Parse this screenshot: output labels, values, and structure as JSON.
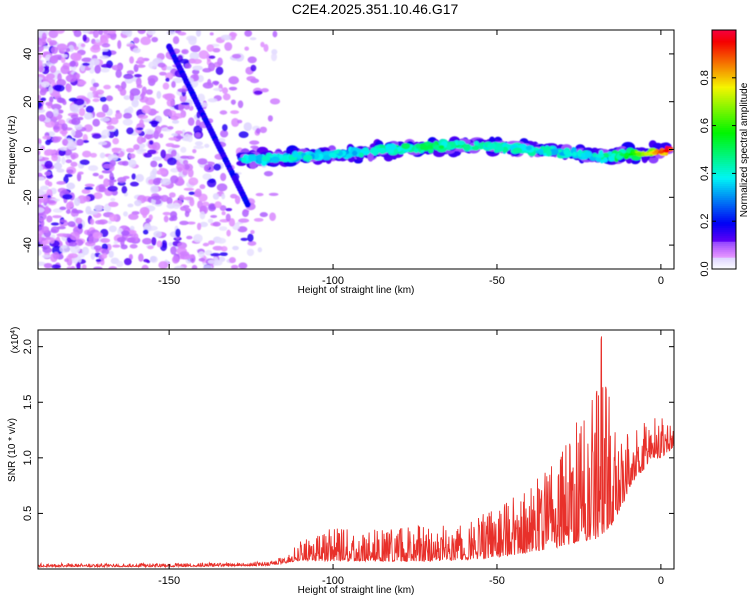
{
  "title": "C2E4.2025.351.10.46.G17",
  "chart_data": [
    {
      "type": "heatmap",
      "xlabel": "Height of straight line (km)",
      "ylabel": "Frequency (Hz)",
      "xlim": [
        -190,
        4
      ],
      "ylim": [
        -50,
        50
      ],
      "xticks": [
        -150,
        -100,
        -50,
        0
      ],
      "yticks": [
        -40,
        -20,
        0,
        20,
        40
      ],
      "colorbar": {
        "label": "Normalized spectral amplitude",
        "range": [
          0,
          1
        ],
        "ticks": [
          "0.0",
          "0.2",
          "0.4",
          "0.6",
          "0.8"
        ],
        "tick_values": [
          0,
          0.2,
          0.4,
          0.6,
          0.8
        ]
      },
      "features": {
        "diagonal_line": {
          "from": [
            -150,
            43
          ],
          "to": [
            -126,
            -23
          ],
          "amplitude": 0.15
        },
        "horizontal_band": {
          "x": [
            -128,
            -120,
            -110,
            -100,
            -90,
            -80,
            -70,
            -60,
            -50,
            -40,
            -30,
            -25,
            -20,
            -15,
            -10,
            -5,
            0,
            3
          ],
          "y": [
            -4,
            -4,
            -3,
            -2,
            -1,
            0,
            1,
            2,
            1,
            0,
            -1,
            -2,
            -3,
            -3,
            -2,
            -2,
            -1,
            0
          ],
          "amplitude": [
            0.38,
            0.4,
            0.4,
            0.38,
            0.4,
            0.45,
            0.5,
            0.45,
            0.42,
            0.42,
            0.4,
            0.38,
            0.42,
            0.45,
            0.55,
            0.7,
            0.9,
            1.0
          ]
        },
        "noise_region": {
          "x_range": [
            -190,
            -120
          ],
          "amplitude": 0.12
        }
      }
    },
    {
      "type": "line",
      "xlabel": "Height of straight line (km)",
      "ylabel": "SNR (10 * v/v)",
      "scale_label": "(x10",
      "scale_exponent": "4",
      "xlim": [
        -190,
        4
      ],
      "ylim": [
        0,
        2.15
      ],
      "xticks": [
        -150,
        -100,
        -50,
        0
      ],
      "yticks": [
        0.5,
        1.0,
        1.5,
        2.0
      ],
      "ytick_labels": [
        "0.5",
        "1.0",
        "1.5",
        "2.0"
      ],
      "color": "#e8302a",
      "envelope": {
        "x": [
          -190,
          -150,
          -120,
          -115,
          -110,
          -100,
          -90,
          -80,
          -70,
          -60,
          -50,
          -40,
          -30,
          -25,
          -20,
          -18,
          -15,
          -12,
          -10,
          -8,
          -5,
          -3,
          0,
          2,
          4
        ],
        "baseline": [
          0.02,
          0.02,
          0.03,
          0.05,
          0.08,
          0.07,
          0.07,
          0.07,
          0.07,
          0.08,
          0.1,
          0.15,
          0.2,
          0.25,
          0.25,
          0.3,
          0.4,
          0.55,
          0.7,
          0.8,
          0.9,
          1.0,
          1.0,
          1.05,
          1.1
        ],
        "peak": [
          0.05,
          0.05,
          0.07,
          0.12,
          0.25,
          0.38,
          0.35,
          0.38,
          0.4,
          0.45,
          0.55,
          0.75,
          1.1,
          1.45,
          1.65,
          2.12,
          1.55,
          1.25,
          1.3,
          1.35,
          1.38,
          1.35,
          1.4,
          1.35,
          1.3
        ]
      }
    }
  ]
}
